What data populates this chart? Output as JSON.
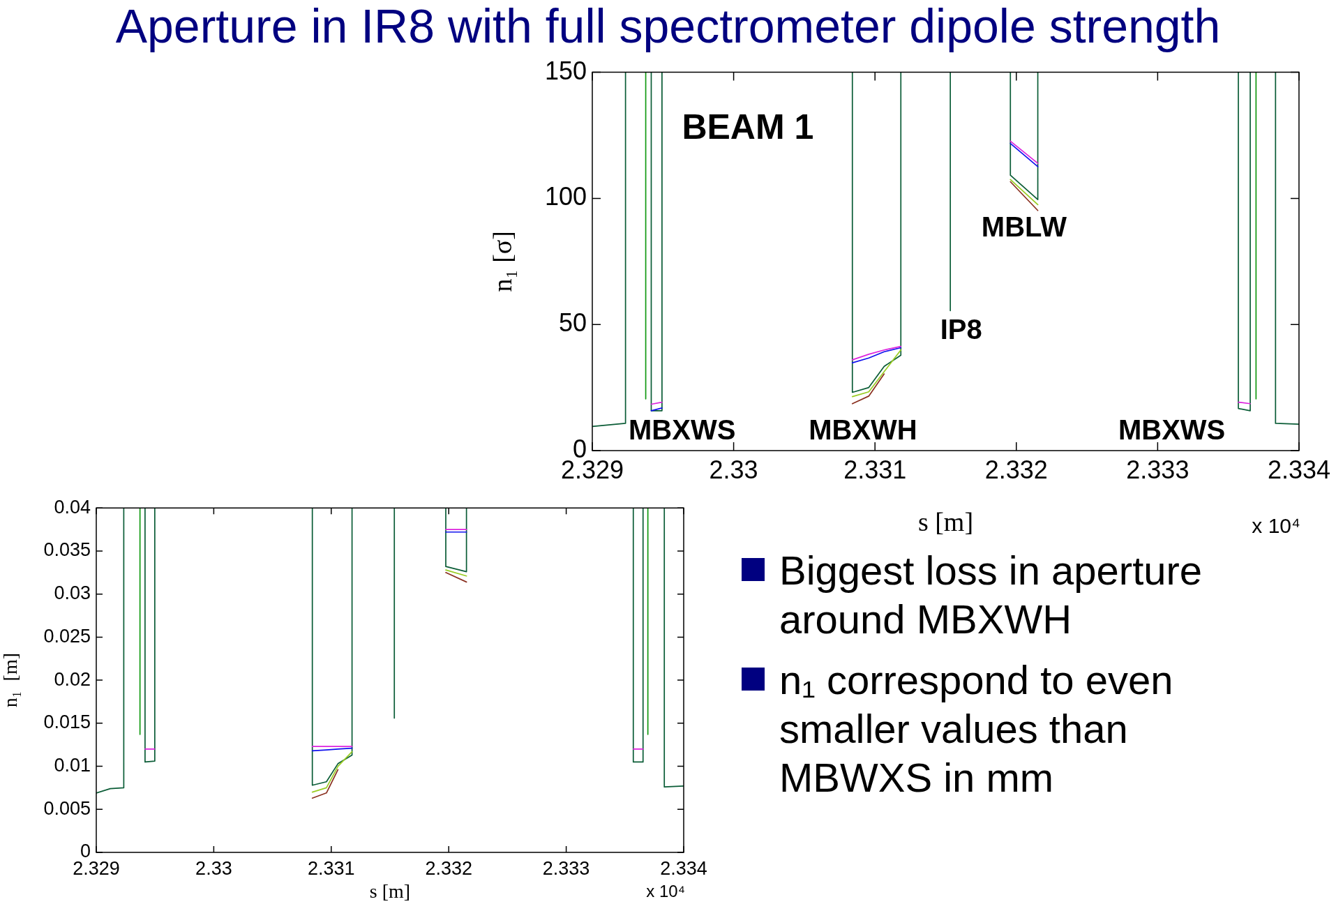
{
  "chart_data": [
    {
      "type": "other",
      "title": "Aperture in IR8 with full spectrometer dipole strength"
    },
    {
      "type": "line",
      "title": "BEAM 1",
      "xlabel": "s [m]",
      "ylabel": "n₁ [σ]",
      "series": [
        {
          "color": "#dd22dd",
          "x": [
            2.329417,
            2.329493,
            null,
            2.33084,
            2.330956,
            2.331065,
            2.331183,
            null,
            2.331958,
            2.332152,
            null,
            2.333571,
            2.333655
          ],
          "values": [
            18.4,
            19.2,
            null,
            36,
            38.2,
            39.9,
            41.3,
            null,
            122.7,
            113.9,
            null,
            19.2,
            18.6
          ]
        },
        {
          "color": "#8a3020",
          "x": [
            2.33084,
            2.330956,
            2.331065,
            null,
            2.331958,
            2.332152
          ],
          "values": [
            18.6,
            21.6,
            30.4,
            null,
            106.6,
            95.2
          ]
        },
        {
          "color": "#99cc22",
          "x": [
            2.33084,
            2.330956,
            2.331065,
            2.331183,
            null,
            2.331958,
            2.332152
          ],
          "values": [
            21.4,
            23.3,
            31.3,
            39.9,
            null,
            107.5,
            97.5
          ]
        },
        {
          "color": "#1010ee",
          "x": [
            2.329417,
            2.329493,
            null,
            2.33084,
            2.330956,
            2.331065,
            2.331183,
            null,
            2.331958,
            2.332152
          ],
          "values": [
            15.8,
            16.9,
            null,
            34.8,
            36.7,
            39.2,
            40.8,
            null,
            121.8,
            112.6
          ]
        },
        {
          "color": "#119911",
          "x": [
            2.329378,
            2.329378,
            null,
            2.333696,
            2.333696
          ],
          "values": [
            150,
            20.5,
            null,
            150,
            20.5
          ]
        },
        {
          "color": "#0a5c36",
          "x": [
            2.329,
            2.329235,
            2.329235,
            null,
            2.329417,
            2.329417,
            2.329493,
            2.329493,
            null,
            2.33084,
            2.33084,
            2.330956,
            2.331065,
            2.331183,
            2.331183,
            null,
            2.331533,
            2.331533,
            null,
            2.331958,
            2.331958,
            2.332152,
            2.332152,
            null,
            2.333571,
            2.333571,
            2.333655,
            2.333655,
            null,
            2.333834,
            2.333834,
            2.334
          ],
          "values": [
            9.6,
            10.8,
            150,
            null,
            150,
            15.8,
            15.8,
            150,
            null,
            150,
            23.1,
            25,
            33.4,
            37.8,
            150,
            null,
            150,
            55.5,
            null,
            150,
            109.2,
            99.5,
            150,
            null,
            150,
            16.7,
            15.8,
            150,
            null,
            150,
            10.8,
            10.5
          ]
        }
      ],
      "xlim": [
        2.329,
        2.334
      ],
      "xticks": [
        2.329,
        2.33,
        2.331,
        2.332,
        2.333,
        2.334
      ],
      "ylim": [
        0,
        150
      ],
      "yticks": [
        0,
        50,
        100,
        150
      ],
      "annotations": [
        "MBXWS",
        "MBXWH",
        "IP8",
        "MBLW",
        "MBXWS",
        "x 10⁴"
      ]
    },
    {
      "type": "line",
      "xlabel": "s [m]",
      "ylabel": "n₁  [m]",
      "series": [
        {
          "color": "#dd22dd",
          "x": [
            2.329415,
            2.329498,
            null,
            2.330839,
            2.330959,
            2.331057,
            2.331177,
            null,
            2.331975,
            2.332151,
            null,
            2.333571,
            2.333654
          ],
          "values": [
            0.012,
            0.012,
            null,
            0.0123,
            0.0123,
            0.0123,
            0.0123,
            null,
            0.0375,
            0.0375,
            null,
            0.012,
            0.012
          ]
        },
        {
          "color": "#8a3020",
          "x": [
            2.330839,
            2.330959,
            2.331057,
            null,
            2.331975,
            2.332151
          ],
          "values": [
            0.0063,
            0.0069,
            0.0096,
            null,
            0.0325,
            0.0314
          ]
        },
        {
          "color": "#99cc22",
          "x": [
            2.330839,
            2.330959,
            2.331057,
            2.331177,
            null,
            2.331975,
            2.332151
          ],
          "values": [
            0.007,
            0.0075,
            0.01,
            0.0117,
            null,
            0.0328,
            0.0321
          ]
        },
        {
          "color": "#1010ee",
          "x": [
            2.330839,
            2.330959,
            2.331057,
            2.331177,
            null,
            2.331975,
            2.332151
          ],
          "values": [
            0.0118,
            0.0119,
            0.012,
            0.0121,
            null,
            0.0372,
            0.0372
          ]
        },
        {
          "color": "#119911",
          "x": [
            2.329372,
            2.329372,
            null,
            2.333695,
            2.333695
          ],
          "values": [
            0.04,
            0.0137,
            null,
            0.04,
            0.0137
          ]
        },
        {
          "color": "#0a5c36",
          "x": [
            2.329,
            2.329119,
            2.329234,
            2.329234,
            null,
            2.329415,
            2.329415,
            2.329498,
            2.329498,
            null,
            2.330839,
            2.330839,
            2.330959,
            2.331057,
            2.331177,
            2.331177,
            null,
            2.331537,
            2.331537,
            null,
            2.331975,
            2.331975,
            2.332151,
            2.332151,
            null,
            2.333571,
            2.333571,
            2.333654,
            2.333654,
            null,
            2.333835,
            2.333835,
            2.334
          ],
          "values": [
            0.0069,
            0.0074,
            0.0075,
            0.04,
            null,
            0.04,
            0.0105,
            0.0106,
            0.04,
            null,
            0.04,
            0.0078,
            0.0082,
            0.0103,
            0.0113,
            0.04,
            null,
            0.04,
            0.0156,
            null,
            0.04,
            0.0332,
            0.0326,
            0.04,
            null,
            0.04,
            0.0105,
            0.0105,
            0.04,
            null,
            0.04,
            0.0076,
            0.0077
          ]
        }
      ],
      "xlim": [
        2.329,
        2.334
      ],
      "xticks": [
        2.329,
        2.33,
        2.331,
        2.332,
        2.333,
        2.334
      ],
      "ylim": [
        0,
        0.04
      ],
      "yticks": [
        0,
        0.005,
        0.01,
        0.015,
        0.02,
        0.025,
        0.03,
        0.035,
        0.04
      ],
      "annotations": [
        "x 10⁴"
      ]
    },
    {
      "type": "other",
      "annotations": [
        "Biggest loss in aperture around MBXWH",
        "n₁ correspond to even smaller values than MBWXS in mm"
      ]
    }
  ]
}
